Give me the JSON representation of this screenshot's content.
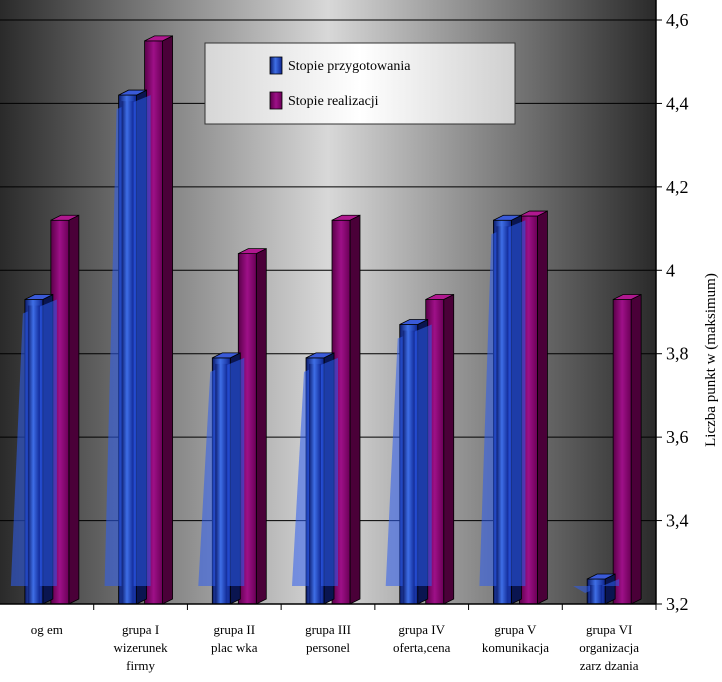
{
  "chart_data": {
    "type": "bar",
    "ylabel": "Liczba punkt w (maksimum)",
    "ylim": [
      3.2,
      4.6
    ],
    "yticks": [
      "3,2",
      "3,4",
      "3,6",
      "3,8",
      "4",
      "4,2",
      "4,4",
      "4,6"
    ],
    "ytick_values": [
      3.2,
      3.4,
      3.6,
      3.8,
      4.0,
      4.2,
      4.4,
      4.6
    ],
    "grid": true,
    "legend_position": "top-center",
    "categories": [
      [
        "og   em"
      ],
      [
        "grupa I",
        "wizerunek",
        "firmy"
      ],
      [
        "grupa II",
        "plac  wka"
      ],
      [
        "grupa III",
        "personel"
      ],
      [
        "grupa IV",
        "oferta,cena"
      ],
      [
        "grupa V",
        "komunikacja"
      ],
      [
        "grupa VI",
        "organizacja",
        "zarz dzania"
      ]
    ],
    "series": [
      {
        "name": "Stopie   przygotowania",
        "color": "#1f3aa6",
        "values": [
          3.93,
          4.42,
          3.79,
          3.79,
          3.87,
          4.12,
          3.26
        ]
      },
      {
        "name": "Stopie   realizacji",
        "color": "#8a0a6e",
        "values": [
          4.12,
          4.55,
          4.04,
          4.12,
          3.93,
          4.13,
          3.93
        ]
      }
    ]
  }
}
